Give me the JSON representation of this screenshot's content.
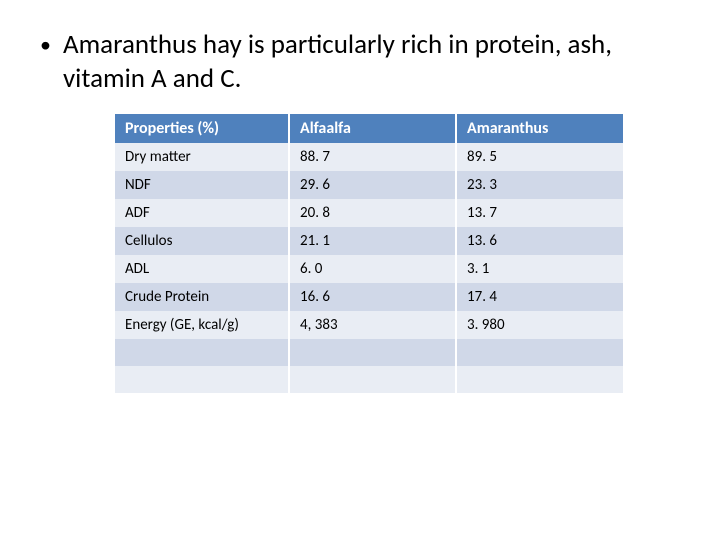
{
  "bullet": "Amaranthus hay is particularly rich in protein, ash, vitamin A and C.",
  "table": {
    "header_bg": "#4f81bd",
    "header_fg": "#ffffff",
    "row_odd_bg": "#e9edf4",
    "row_even_bg": "#d0d8e8",
    "columns": [
      "Properties (%)",
      "Alfaalfa",
      "Amaranthus"
    ],
    "rows": [
      [
        "Dry matter",
        "88. 7",
        "89. 5"
      ],
      [
        "NDF",
        "29. 6",
        "23. 3"
      ],
      [
        "ADF",
        "20. 8",
        "13. 7"
      ],
      [
        "Cellulos",
        "21. 1",
        "13. 6"
      ],
      [
        "ADL",
        "6. 0",
        "3. 1"
      ],
      [
        "Crude Protein",
        "16. 6",
        "17. 4"
      ],
      [
        "Energy (GE, kcal/g)",
        "4, 383",
        "3. 980"
      ],
      [
        "",
        "",
        ""
      ],
      [
        "",
        "",
        ""
      ]
    ]
  }
}
